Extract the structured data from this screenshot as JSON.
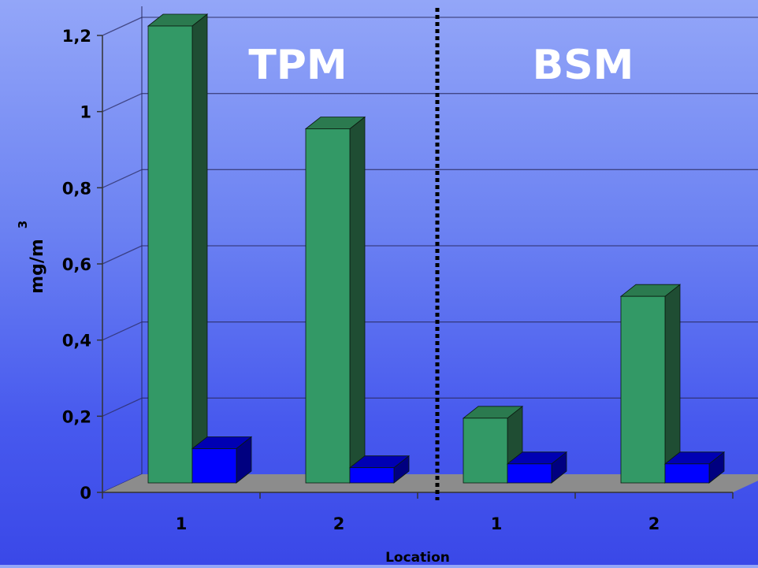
{
  "chart_data": {
    "type": "bar",
    "style": "3d-clustered-column",
    "ylabel": "mg/m",
    "ylabel_sup": "3",
    "xlabel": "Location",
    "ylim": [
      0,
      1.2
    ],
    "yticks": [
      "0",
      "0,2",
      "0,4",
      "0,6",
      "0,8",
      "1",
      "1,2"
    ],
    "ytick_values": [
      0,
      0.2,
      0.4,
      0.6,
      0.8,
      1.0,
      1.2
    ],
    "grid": true,
    "panels": [
      "TPM",
      "BSM"
    ],
    "categories": [
      "1",
      "2",
      "1",
      "2"
    ],
    "series": [
      {
        "values": [
          1.2,
          0.93,
          0.17,
          0.49
        ],
        "color": "#339966",
        "side_color": "#1f4d33",
        "top_color": "#2b7a4f"
      },
      {
        "values": [
          0.09,
          0.04,
          0.05,
          0.05
        ],
        "color": "#0000ff",
        "side_color": "#000080",
        "top_color": "#0000b3"
      }
    ],
    "colors": {
      "floor": "#8c8c8c",
      "gridline": "#2b2b60",
      "divider": "#000000",
      "panel_text": "#ffffff"
    }
  }
}
